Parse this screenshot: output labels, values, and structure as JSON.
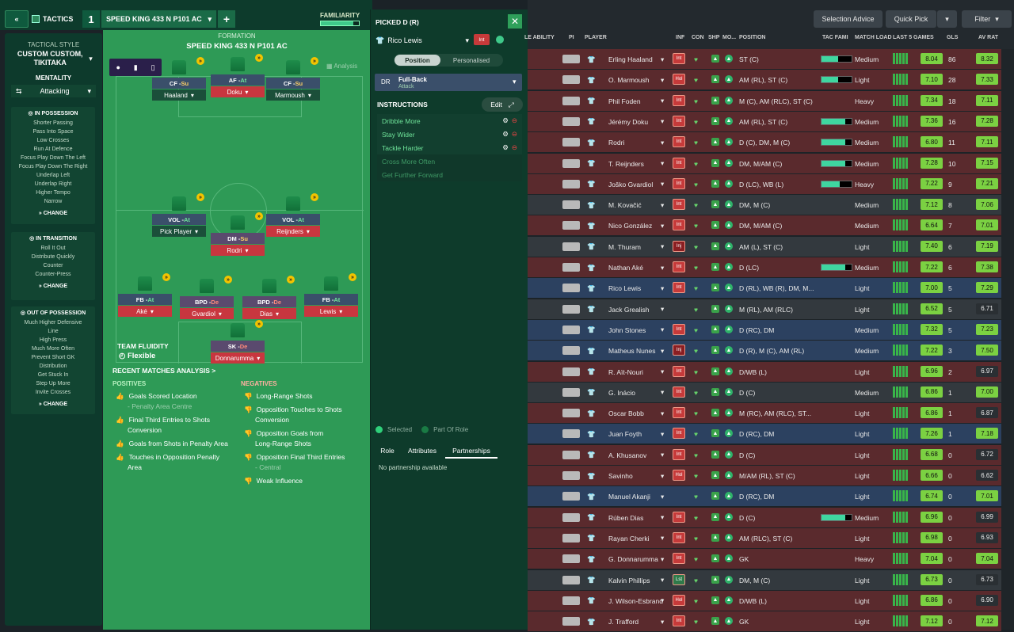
{
  "topbar": {
    "back_icon": "double-chevron-left-icon",
    "tactics_label": "TACTICS",
    "tactic_number": "1",
    "tactic_name": "SPEED KING 433 N P101 AC",
    "add_label": "+",
    "familiarity_label": "FAMILIARITY",
    "familiarity_level": 0.85
  },
  "left_panel": {
    "style_title": "TACTICAL STYLE",
    "style_value": "CUSTOM CUSTOM, TIKITAKA",
    "mentality_label": "MENTALITY",
    "mentality_value": "Attacking",
    "in_possession": {
      "title": "IN POSSESSION",
      "items": [
        "Shorter Passing",
        "Pass Into Space",
        "Low Crosses",
        "Run At Defence",
        "Focus Play Down The Left",
        "Focus Play Down The Right",
        "Underlap Left",
        "Underlap Right",
        "Higher Tempo",
        "Narrow"
      ],
      "change": "CHANGE"
    },
    "in_transition": {
      "title": "IN TRANSITION",
      "items": [
        "Roll It Out",
        "Distribute Quickly",
        "Counter",
        "Counter-Press"
      ],
      "change": "CHANGE"
    },
    "out_of_possession": {
      "title": "OUT OF POSSESSION",
      "items": [
        "Much Higher Defensive",
        "Line",
        "High Press",
        "Much More Often",
        "Prevent Short GK",
        "Distribution",
        "Get Stuck In",
        "Step Up More",
        "Invite Crosses"
      ],
      "change": "CHANGE"
    }
  },
  "formation": {
    "label": "FORMATION",
    "name": "SPEED KING 433 N P101 AC",
    "analysis": "Analysis",
    "team_fluidity_label": "TEAM FLUIDITY",
    "team_fluidity_value": "Flexible",
    "players": [
      {
        "role": "CF",
        "duty": "Su",
        "name": "Haaland"
      },
      {
        "role": "AF",
        "duty": "At",
        "name": "Doku"
      },
      {
        "role": "CF",
        "duty": "Su",
        "name": "Marmoush"
      },
      {
        "role": "VOL",
        "duty": "At",
        "name": "Pick Player"
      },
      {
        "role": "DM",
        "duty": "Su",
        "name": "Rodri"
      },
      {
        "role": "VOL",
        "duty": "At",
        "name": "Reijnders"
      },
      {
        "role": "FB",
        "duty": "At",
        "name": "Aké"
      },
      {
        "role": "BPD",
        "duty": "De",
        "name": "Gvardiol"
      },
      {
        "role": "BPD",
        "duty": "De",
        "name": "Dias"
      },
      {
        "role": "FB",
        "duty": "At",
        "name": "Lewis"
      },
      {
        "role": "SK",
        "duty": "De",
        "name": "Donnarumma"
      }
    ]
  },
  "analysis": {
    "title": "RECENT MATCHES ANALYSIS >",
    "positives_label": "POSITIVES",
    "negatives_label": "NEGATIVES",
    "positives": [
      "Goals Scored Location",
      "- Penalty Area Centre",
      "Final Third Entries to Shots",
      "Conversion",
      "Goals from Shots in Penalty Area",
      "Touches in Opposition Penalty",
      "Area"
    ],
    "negatives": [
      "Long-Range Shots",
      "Opposition Touches to Shots",
      "Conversion",
      "Opposition Goals from",
      "Long-Range Shots",
      "Opposition Final Third Entries",
      "- Central",
      "Weak Influence"
    ]
  },
  "picked": {
    "title": "PICKED D (R)",
    "close_icon": "close-icon",
    "player": "Rico Lewis",
    "status": "Int",
    "tab_position": "Position",
    "tab_personalised": "Personalised",
    "pos_code": "DR",
    "role_name": "Full-Back",
    "role_duty": "Attack",
    "instructions_label": "INSTRUCTIONS",
    "edit_label": "Edit",
    "instructions": [
      "Dribble More",
      "Stay Wider",
      "Tackle Harder",
      "Cross More Often",
      "Get Further Forward"
    ],
    "legend_selected": "Selected",
    "legend_part": "Part Of Role",
    "tabs": [
      "Role",
      "Attributes",
      "Partnerships"
    ],
    "no_partnership": "No partnership available"
  },
  "right": {
    "selection_advice": "Selection Advice",
    "quick_pick": "Quick Pick",
    "filter": "Filter",
    "headers": [
      "LE ABILITY",
      "PI",
      "PLAYER",
      "INF",
      "CON",
      "SHP",
      "MO...",
      "POSITION",
      "TAC FAMI",
      "MATCH LOAD",
      "LAST 5 GAMES",
      "GLS",
      "AV RAT"
    ],
    "rows": [
      {
        "player": "Erling Haaland",
        "inf": "Int",
        "pos": "ST (C)",
        "tac": 0.55,
        "load": "Medium",
        "last5": "8.04",
        "gls": "86",
        "avr": "8.32",
        "bg": "#5a2a2d"
      },
      {
        "player": "O. Marmoush",
        "inf": "Hol",
        "pos": "AM (RL), ST (C)",
        "tac": 0.55,
        "load": "Light",
        "last5": "7.10",
        "gls": "28",
        "avr": "7.33",
        "bg": "#5a2a2d"
      },
      {
        "player": "Phil Foden",
        "inf": "Int",
        "pos": "M (C), AM (RLC), ST (C)",
        "tac": 0,
        "load": "Heavy",
        "last5": "7.34",
        "gls": "18",
        "avr": "7.11",
        "bg": "#5a2a2d"
      },
      {
        "player": "Jérémy Doku",
        "inf": "Int",
        "pos": "AM (RL), ST (C)",
        "tac": 0.8,
        "load": "Medium",
        "last5": "7.36",
        "gls": "16",
        "avr": "7.28",
        "bg": "#5a2a2d"
      },
      {
        "player": "Rodri",
        "inf": "Int",
        "pos": "D (C), DM, M (C)",
        "tac": 0.8,
        "load": "Medium",
        "last5": "6.80",
        "gls": "11",
        "avr": "7.11",
        "bg": "#5a2a2d"
      },
      {
        "player": "T. Reijnders",
        "inf": "Int",
        "pos": "DM, M/AM (C)",
        "tac": 0.8,
        "load": "Medium",
        "last5": "7.28",
        "gls": "10",
        "avr": "7.15",
        "bg": "#5a2a2d"
      },
      {
        "player": "Joško Gvardiol",
        "inf": "Int",
        "pos": "D (LC), WB (L)",
        "tac": 0.6,
        "load": "Heavy",
        "last5": "7.22",
        "gls": "9",
        "avr": "7.21",
        "bg": "#5a2a2d"
      },
      {
        "player": "M. Kovačić",
        "inf": "Int",
        "pos": "DM, M (C)",
        "tac": 0,
        "load": "Medium",
        "last5": "7.12",
        "gls": "8",
        "avr": "7.06",
        "bg": "#33393e"
      },
      {
        "player": "Nico González",
        "inf": "Int",
        "pos": "DM, M/AM (C)",
        "tac": 0,
        "load": "Medium",
        "last5": "6.64",
        "gls": "7",
        "avr": "7.01",
        "bg": "#5a2a2d"
      },
      {
        "player": "M. Thuram",
        "inf": "Inj",
        "pos": "AM (L), ST (C)",
        "tac": 0,
        "load": "Light",
        "last5": "7.40",
        "gls": "6",
        "avr": "7.19",
        "bg": "#33393e"
      },
      {
        "player": "Nathan Aké",
        "inf": "Int",
        "pos": "D (LC)",
        "tac": 0.8,
        "load": "Medium",
        "last5": "7.22",
        "gls": "6",
        "avr": "7.38",
        "bg": "#5a2a2d"
      },
      {
        "player": "Rico Lewis",
        "inf": "Int",
        "pos": "D (RL), WB (R), DM, M...",
        "tac": 0,
        "load": "Light",
        "last5": "7.00",
        "gls": "5",
        "avr": "7.29",
        "bg": "#2c4160"
      },
      {
        "player": "Jack Grealish",
        "inf": "",
        "pos": "M (RL), AM (RLC)",
        "tac": 0,
        "load": "Light",
        "last5": "6.52",
        "gls": "5",
        "avr": "6.71",
        "bg": "#33393e"
      },
      {
        "player": "John Stones",
        "inf": "Int",
        "pos": "D (RC), DM",
        "tac": 0,
        "load": "Medium",
        "last5": "7.32",
        "gls": "5",
        "avr": "7.23",
        "bg": "#2c4160"
      },
      {
        "player": "Matheus Nunes",
        "inf": "Inj",
        "pos": "D (R), M (C), AM (RL)",
        "tac": 0,
        "load": "Medium",
        "last5": "7.22",
        "gls": "3",
        "avr": "7.50",
        "bg": "#2c4160"
      },
      {
        "player": "R. Aït-Nouri",
        "inf": "Int",
        "pos": "D/WB (L)",
        "tac": 0,
        "load": "Light",
        "last5": "6.96",
        "gls": "2",
        "avr": "6.97",
        "bg": "#5a2a2d"
      },
      {
        "player": "G. Inácio",
        "inf": "Int",
        "pos": "D (C)",
        "tac": 0,
        "load": "Medium",
        "last5": "6.86",
        "gls": "1",
        "avr": "7.00",
        "bg": "#33393e"
      },
      {
        "player": "Oscar Bobb",
        "inf": "Int",
        "pos": "M (RC), AM (RLC), ST...",
        "tac": 0,
        "load": "Light",
        "last5": "6.86",
        "gls": "1",
        "avr": "6.87",
        "bg": "#5a2a2d"
      },
      {
        "player": "Juan Foyth",
        "inf": "Int",
        "pos": "D (RC), DM",
        "tac": 0,
        "load": "Light",
        "last5": "7.26",
        "gls": "1",
        "avr": "7.18",
        "bg": "#2c4160"
      },
      {
        "player": "A. Khusanov",
        "inf": "Int",
        "pos": "D (C)",
        "tac": 0,
        "load": "Light",
        "last5": "6.68",
        "gls": "0",
        "avr": "6.72",
        "bg": "#5a2a2d"
      },
      {
        "player": "Savinho",
        "inf": "Hol",
        "pos": "M/AM (RL), ST (C)",
        "tac": 0,
        "load": "Light",
        "last5": "6.66",
        "gls": "0",
        "avr": "6.62",
        "bg": "#5a2a2d"
      },
      {
        "player": "Manuel Akanji",
        "inf": "",
        "pos": "D (RC), DM",
        "tac": 0,
        "load": "Light",
        "last5": "6.74",
        "gls": "0",
        "avr": "7.01",
        "bg": "#2c4160"
      },
      {
        "player": "Rúben Dias",
        "inf": "Int",
        "pos": "D (C)",
        "tac": 0.8,
        "load": "Medium",
        "last5": "6.96",
        "gls": "0",
        "avr": "6.99",
        "bg": "#5a2a2d"
      },
      {
        "player": "Rayan Cherki",
        "inf": "Int",
        "pos": "AM (RLC), ST (C)",
        "tac": 0,
        "load": "Light",
        "last5": "6.98",
        "gls": "0",
        "avr": "6.93",
        "bg": "#5a2a2d"
      },
      {
        "player": "G. Donnarumma",
        "inf": "Int",
        "pos": "GK",
        "tac": 0,
        "load": "Heavy",
        "last5": "7.04",
        "gls": "0",
        "avr": "7.04",
        "bg": "#5a2a2d"
      },
      {
        "player": "Kalvin Phillips",
        "inf": "Lst",
        "pos": "DM, M (C)",
        "tac": 0,
        "load": "Light",
        "last5": "6.73",
        "gls": "0",
        "avr": "6.73",
        "bg": "#33393e"
      },
      {
        "player": "J. Wilson-Esbrand",
        "inf": "Hol",
        "pos": "D/WB (L)",
        "tac": 0,
        "load": "Light",
        "last5": "6.86",
        "gls": "0",
        "avr": "6.90",
        "bg": "#5a2a2d"
      },
      {
        "player": "J. Trafford",
        "inf": "Int",
        "pos": "GK",
        "tac": 0,
        "load": "Light",
        "last5": "7.12",
        "gls": "0",
        "avr": "7.12",
        "bg": "#5a2a2d"
      }
    ]
  }
}
